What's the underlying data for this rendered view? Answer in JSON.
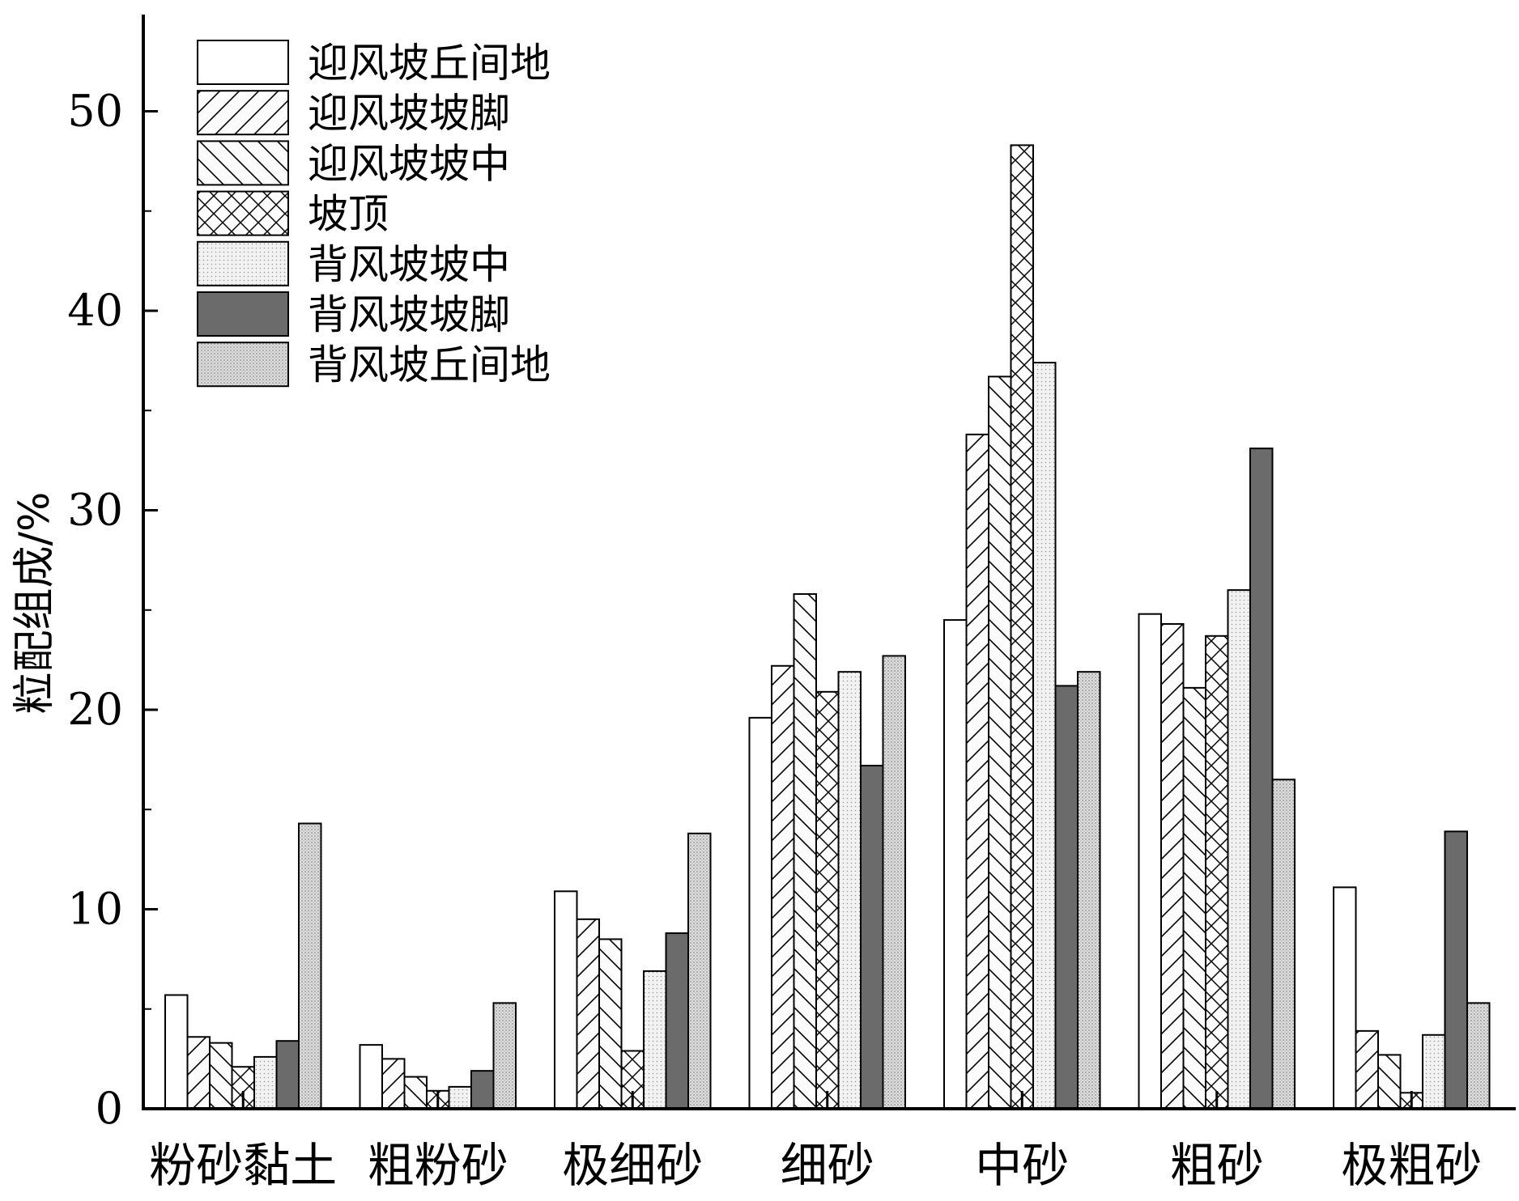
{
  "chart_data": {
    "type": "bar",
    "title": "",
    "ylabel": "粒配组成/%",
    "xlabel": "",
    "ylim": [
      0,
      55
    ],
    "yticks": [
      0,
      10,
      20,
      30,
      40,
      50
    ],
    "grid": false,
    "legend_position": "top-left",
    "categories": [
      "粉砂黏土",
      "粗粉砂",
      "极细砂",
      "细砂",
      "中砂",
      "粗砂",
      "极粗砂"
    ],
    "series": [
      {
        "name": "迎风坡丘间地",
        "pattern": "blank",
        "values": [
          5.7,
          3.2,
          10.9,
          19.6,
          24.5,
          24.8,
          11.1
        ]
      },
      {
        "name": "迎风坡坡脚",
        "pattern": "hatch-forward",
        "values": [
          3.6,
          2.5,
          9.5,
          22.2,
          33.8,
          24.3,
          3.9
        ]
      },
      {
        "name": "迎风坡坡中",
        "pattern": "hatch-back",
        "values": [
          3.3,
          1.6,
          8.5,
          25.8,
          36.7,
          21.1,
          2.7
        ]
      },
      {
        "name": "坡顶",
        "pattern": "crosshatch",
        "values": [
          2.1,
          0.9,
          2.9,
          20.9,
          48.3,
          23.7,
          0.8
        ]
      },
      {
        "name": "背风坡坡中",
        "pattern": "light-dots",
        "values": [
          2.6,
          1.1,
          6.9,
          21.9,
          37.4,
          26.0,
          3.7
        ]
      },
      {
        "name": "背风坡坡脚",
        "pattern": "dark-fill",
        "values": [
          3.4,
          1.9,
          8.8,
          17.2,
          21.2,
          33.1,
          13.9
        ]
      },
      {
        "name": "背风坡丘间地",
        "pattern": "medium-dots",
        "values": [
          14.3,
          5.3,
          13.8,
          22.7,
          21.9,
          16.5,
          5.3
        ]
      }
    ]
  }
}
